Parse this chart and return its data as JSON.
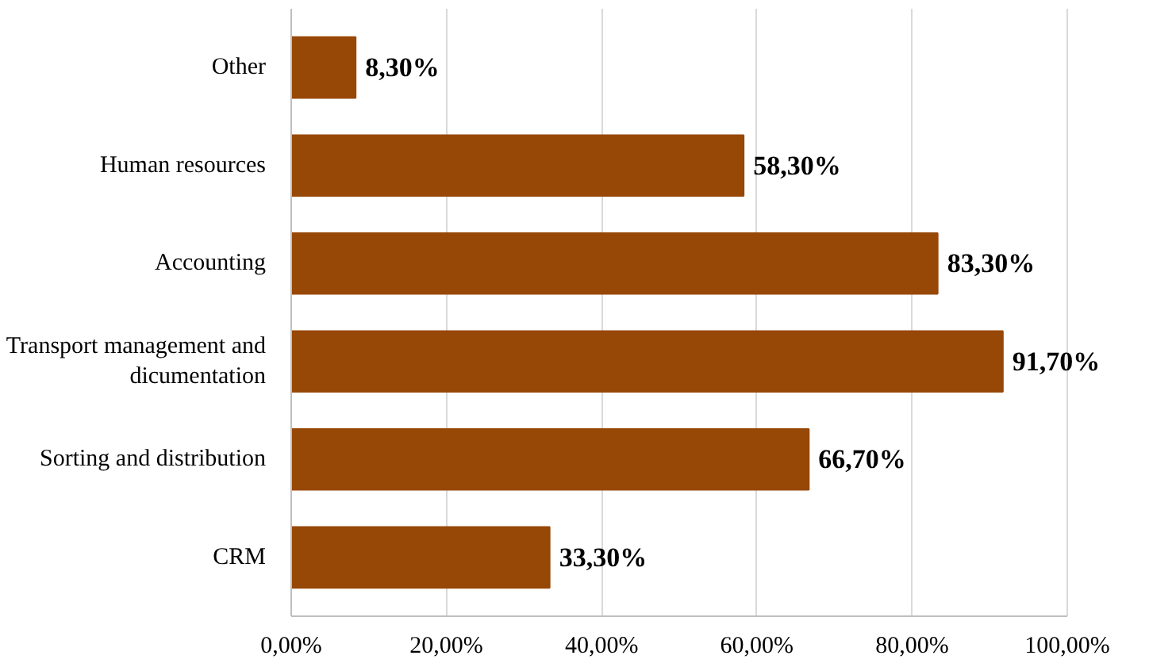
{
  "chart_data": {
    "type": "bar",
    "orientation": "horizontal",
    "categories": [
      "Other",
      "Human resources",
      "Accounting",
      "Transport management and\ndicumentation",
      "Sorting and distribution",
      "CRM"
    ],
    "values": [
      8.3,
      58.3,
      83.3,
      91.7,
      66.7,
      33.3
    ],
    "value_labels": [
      "8,30%",
      "58,30%",
      "83,30%",
      "91,70%",
      "66,70%",
      "33,30%"
    ],
    "color": "#974706",
    "xlim": [
      0,
      100
    ],
    "xticks": [
      {
        "value": 0,
        "label": "0,00%"
      },
      {
        "value": 20,
        "label": "20,00%"
      },
      {
        "value": 40,
        "label": "40,00%"
      },
      {
        "value": 60,
        "label": "60,00%"
      },
      {
        "value": 80,
        "label": "80,00%"
      },
      {
        "value": 100,
        "label": "100,00%"
      }
    ],
    "grid": "x"
  }
}
